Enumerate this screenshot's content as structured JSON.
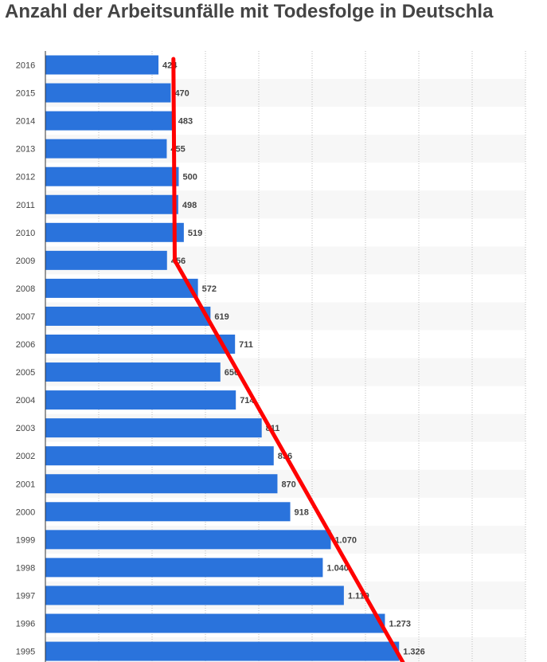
{
  "title": "Anzahl der Arbeitsunfälle mit Todesfolge in Deutschla",
  "colors": {
    "bar": "#2a73dc",
    "band": "#f7f7f7",
    "grid": "#bbbbbb",
    "trend_line": "#ff0000",
    "text": "#444444"
  },
  "chart_data": {
    "type": "bar",
    "orientation": "horizontal",
    "title": "Anzahl der Arbeitsunfälle mit Todesfolge in Deutschla",
    "xlabel": "",
    "ylabel": "",
    "xlim": [
      0,
      1800
    ],
    "grid": true,
    "categories": [
      "2016",
      "2015",
      "2014",
      "2013",
      "2012",
      "2011",
      "2010",
      "2009",
      "2008",
      "2007",
      "2006",
      "2005",
      "2004",
      "2003",
      "2002",
      "2001",
      "2000",
      "1999",
      "1998",
      "1997",
      "1996",
      "1995"
    ],
    "values": [
      424,
      470,
      483,
      455,
      500,
      498,
      519,
      456,
      572,
      619,
      711,
      656,
      714,
      811,
      856,
      870,
      918,
      1070,
      1040,
      1119,
      1273,
      1326
    ],
    "value_labels": [
      "424",
      "470",
      "483",
      "455",
      "500",
      "498",
      "519",
      "456",
      "572",
      "619",
      "711",
      "656",
      "714",
      "811",
      "856",
      "870",
      "918",
      "1.070",
      "1.040",
      "1.119",
      "1.273",
      "1.326"
    ],
    "annotation": {
      "type": "hand-drawn trend line",
      "color": "#ff0000",
      "points": [
        {
          "category": "2016",
          "value": 480
        },
        {
          "category": "2009",
          "value": 485
        },
        {
          "category": "1995",
          "value": 1340
        }
      ]
    }
  }
}
